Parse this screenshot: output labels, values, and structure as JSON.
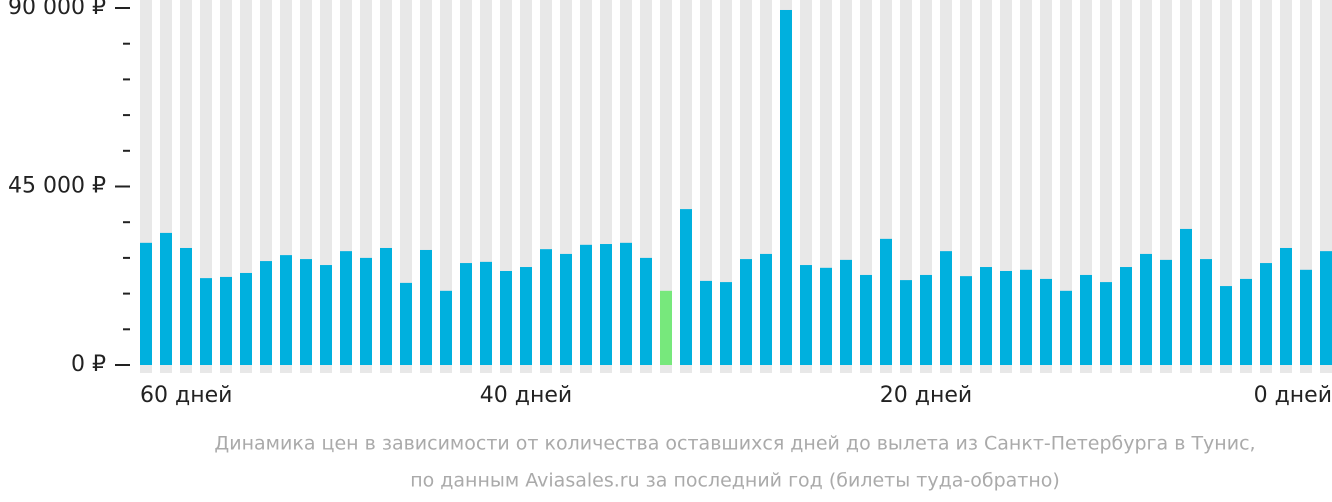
{
  "chart_data": {
    "type": "bar",
    "categories": [
      "60 дней",
      null,
      null,
      null,
      null,
      null,
      null,
      null,
      null,
      null,
      null,
      null,
      null,
      null,
      null,
      null,
      null,
      null,
      null,
      "40 дней",
      null,
      null,
      null,
      null,
      null,
      null,
      null,
      null,
      null,
      null,
      null,
      null,
      null,
      null,
      null,
      null,
      null,
      null,
      null,
      "20 дней",
      null,
      null,
      null,
      null,
      null,
      null,
      null,
      null,
      null,
      null,
      null,
      null,
      null,
      null,
      null,
      null,
      null,
      null,
      null,
      "0 дней"
    ],
    "values": [
      30800,
      33300,
      29500,
      21900,
      22200,
      23200,
      26200,
      27700,
      26700,
      25200,
      28700,
      27000,
      29500,
      20700,
      29000,
      18700,
      25700,
      26000,
      23700,
      24700,
      29200,
      28000,
      30300,
      30500,
      30800,
      27000,
      18700,
      39300,
      21200,
      20900,
      26700,
      28000,
      89500,
      25200,
      24500,
      26500,
      22700,
      31800,
      21400,
      22700,
      28700,
      22400,
      24700,
      23700,
      24000,
      21700,
      18700,
      22700,
      20900,
      24700,
      28000,
      26500,
      34300,
      26700,
      19900,
      21700,
      25700,
      29500,
      24000,
      28700
    ],
    "color": "#00b0de",
    "bar_colors": [
      "#00b0de",
      "#00b0de",
      "#00b0de",
      "#00b0de",
      "#00b0de",
      "#00b0de",
      "#00b0de",
      "#00b0de",
      "#00b0de",
      "#00b0de",
      "#00b0de",
      "#00b0de",
      "#00b0de",
      "#00b0de",
      "#00b0de",
      "#00b0de",
      "#00b0de",
      "#00b0de",
      "#00b0de",
      "#00b0de",
      "#00b0de",
      "#00b0de",
      "#00b0de",
      "#00b0de",
      "#00b0de",
      "#00b0de",
      "#77e87c",
      "#00b0de",
      "#00b0de",
      "#00b0de",
      "#00b0de",
      "#00b0de",
      "#00b0de",
      "#00b0de",
      "#00b0de",
      "#00b0de",
      "#00b0de",
      "#00b0de",
      "#00b0de",
      "#00b0de",
      "#00b0de",
      "#00b0de",
      "#00b0de",
      "#00b0de",
      "#00b0de",
      "#00b0de",
      "#00b0de",
      "#00b0de",
      "#00b0de",
      "#00b0de",
      "#00b0de",
      "#00b0de",
      "#00b0de",
      "#00b0de",
      "#00b0de",
      "#00b0de",
      "#00b0de",
      "#00b0de",
      "#00b0de",
      "#00b0de"
    ],
    "background_color": "#e8e8e8",
    "ylim": [
      0,
      90000
    ],
    "yticks": [
      {
        "value": 0,
        "label": "0 ₽"
      },
      {
        "value": 45000,
        "label": "45 000 ₽"
      },
      {
        "value": 90000,
        "label": "90 000 ₽"
      }
    ],
    "minor_yticks": [
      9000,
      18000,
      27000,
      36000,
      54000,
      63000,
      72000,
      81000
    ],
    "caption": [
      "Динамика цен в зависимости от количества оставшихся дней до вылета из Санкт-Петербурга в Тунис,",
      "по данным Aviasales.ru за последний год (билеты туда-обратно)"
    ]
  }
}
